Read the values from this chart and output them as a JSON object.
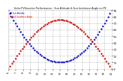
{
  "title": "Solar PV/Inverter Performance - Sun Altitude & Sun Incidence Angle on PV",
  "legend_labels": [
    "Sun Altitude",
    "Sun Incidence Angle"
  ],
  "blue_color": "#0000cc",
  "red_color": "#cc0000",
  "x_start": 6,
  "x_end": 20,
  "x_ticks": [
    6,
    7,
    8,
    9,
    10,
    11,
    12,
    13,
    14,
    15,
    16,
    17,
    18,
    19,
    20
  ],
  "y_min": 0,
  "y_max": 90,
  "y_ticks": [
    0,
    10,
    20,
    30,
    40,
    50,
    60,
    70,
    80,
    90
  ],
  "background_color": "#ffffff",
  "plot_bg_color": "#ffffff",
  "grid_color": "#cccccc",
  "title_color": "#000000",
  "tick_color": "#000000",
  "blue_peak": 90,
  "blue_min": 10,
  "red_peak": 75,
  "red_min": 0
}
